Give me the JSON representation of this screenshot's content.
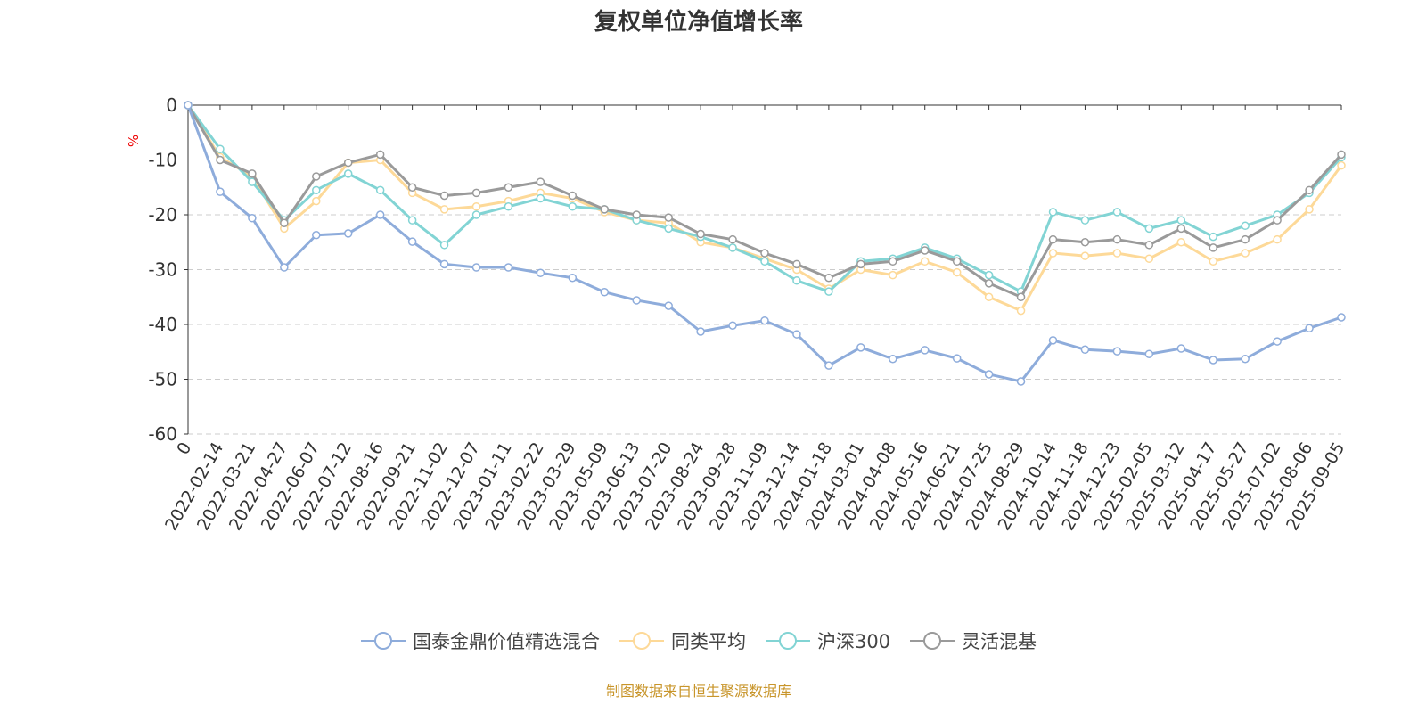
{
  "chart_data": {
    "type": "line",
    "title": "复权单位净值增长率",
    "ylabel": "%",
    "xlabel": "",
    "ylim": [
      -60,
      0
    ],
    "yticks": [
      0,
      -10,
      -20,
      -30,
      -40,
      -50,
      -60
    ],
    "grid": true,
    "legend_position": "bottom",
    "categories": [
      "0",
      "2022-02-14",
      "2022-03-21",
      "2022-04-27",
      "2022-06-07",
      "2022-07-12",
      "2022-08-16",
      "2022-09-21",
      "2022-11-02",
      "2022-12-07",
      "2023-01-11",
      "2023-02-22",
      "2023-03-29",
      "2023-05-09",
      "2023-06-13",
      "2023-07-20",
      "2023-08-24",
      "2023-09-28",
      "2023-11-09",
      "2023-12-14",
      "2024-01-18",
      "2024-03-01",
      "2024-04-08",
      "2024-05-16",
      "2024-06-21",
      "2024-07-25",
      "2024-08-29",
      "2024-10-14",
      "2024-11-18",
      "2024-12-23",
      "2025-02-05",
      "2025-03-12",
      "2025-04-17",
      "2025-05-27",
      "2025-07-02",
      "2025-08-06",
      "2025-09-05"
    ],
    "series": [
      {
        "name": "国泰金鼎价值精选混合",
        "color": "#8eacdb",
        "values": [
          0,
          -15.8,
          -20.6,
          -29.6,
          -23.7,
          -23.4,
          -20,
          -24.9,
          -29,
          -29.6,
          -29.6,
          -30.6,
          -31.5,
          -34.1,
          -35.6,
          -36.6,
          -41.3,
          -40.2,
          -39.3,
          -41.8,
          -47.5,
          -44.2,
          -46.3,
          -44.7,
          -46.2,
          -49.1,
          -50.4,
          -42.9,
          -44.6,
          -44.9,
          -45.4,
          -44.4,
          -46.5,
          -46.3,
          -43.1,
          -40.7,
          -38.7
        ]
      },
      {
        "name": "同类平均",
        "color": "#fdd998",
        "values": [
          0,
          -9.5,
          -13,
          -22.5,
          -17.5,
          -10.5,
          -10,
          -16,
          -19,
          -18.5,
          -17.5,
          -16,
          -17,
          -19.5,
          -21,
          -21.5,
          -25,
          -26,
          -28,
          -30,
          -33.5,
          -30,
          -31,
          -28.5,
          -30.5,
          -35,
          -37.5,
          -27,
          -27.5,
          -27,
          -28,
          -25,
          -28.5,
          -27,
          -24.5,
          -19,
          -11
        ]
      },
      {
        "name": "沪深300",
        "color": "#82d4d4",
        "values": [
          0,
          -8,
          -14,
          -21,
          -15.5,
          -12.5,
          -15.5,
          -21,
          -25.5,
          -20,
          -18.5,
          -17,
          -18.5,
          -19,
          -21,
          -22.5,
          -24,
          -26,
          -28.5,
          -32,
          -34,
          -28.5,
          -28,
          -26,
          -28,
          -31,
          -34,
          -19.5,
          -21,
          -19.5,
          -22.5,
          -21,
          -24,
          -22,
          -20,
          -16,
          -9.5
        ]
      },
      {
        "name": "灵活混基",
        "color": "#9a9a9a",
        "values": [
          0,
          -10,
          -12.5,
          -21.5,
          -13,
          -10.5,
          -9,
          -15,
          -16.5,
          -16,
          -15,
          -14,
          -16.5,
          -19,
          -20,
          -20.5,
          -23.5,
          -24.5,
          -27,
          -29,
          -31.5,
          -29,
          -28.5,
          -26.5,
          -28.5,
          -32.5,
          -35,
          -24.5,
          -25,
          -24.5,
          -25.5,
          -22.5,
          -26,
          -24.5,
          -21,
          -15.5,
          -9
        ]
      }
    ]
  },
  "source": "制图数据来自恒生聚源数据库"
}
